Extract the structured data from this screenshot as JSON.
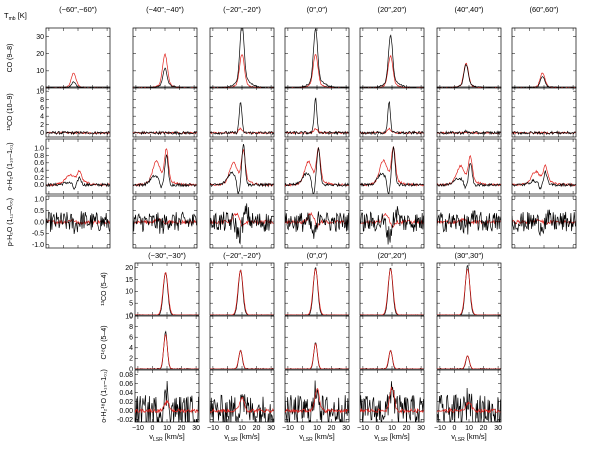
{
  "corner_label": "T_mb [K]",
  "colors": {
    "black": "#000000",
    "red": "#e0201b"
  },
  "top_block": {
    "columns": [
      "(−60″,−60″)",
      "(−40″,−40″)",
      "(−20″,−20″)",
      "(0″,0″)",
      "(20″,20″)",
      "(40″,40″)",
      "(60″,60″)"
    ],
    "rows": [
      {
        "ylabel": "CO (9–8)",
        "ylim": [
          0,
          35
        ],
        "yticks": [
          "0",
          "10",
          "20",
          "30"
        ]
      },
      {
        "ylabel": "¹³CO (10–9)",
        "ylim": [
          -1,
          11
        ],
        "yticks": [
          "0",
          "2",
          "4",
          "6",
          "8",
          "10"
        ]
      },
      {
        "ylabel": "o-H₂O (1₁₀–1₀₁)",
        "ylim": [
          -0.25,
          1.25
        ],
        "yticks": [
          "0.0",
          "0.2",
          "0.4",
          "0.6",
          "0.8",
          "1.0"
        ]
      },
      {
        "ylabel": "p-H₂O (1₁₁–0₀₀)",
        "ylim": [
          -1.15,
          1.15
        ],
        "yticks": [
          "-1.0",
          "-0.5",
          "0.0",
          "0.5",
          "1.0"
        ]
      }
    ]
  },
  "bottom_block": {
    "columns": [
      "(−30″,−30″)",
      "(−20″,−20″)",
      "(0″,0″)",
      "(20″,20″)",
      "(30″,30″)"
    ],
    "rows": [
      {
        "ylabel": "¹³CO (5–4)",
        "ylim": [
          0,
          22
        ],
        "yticks": [
          "0",
          "5",
          "10",
          "15",
          "20"
        ]
      },
      {
        "ylabel": "C¹⁸O (5–4)",
        "ylim": [
          0,
          10
        ],
        "yticks": [
          "0",
          "2",
          "4",
          "6",
          "8",
          "10"
        ]
      },
      {
        "ylabel": "o-H₂¹⁸O (1₁₀–1₀₁)",
        "ylim": [
          -0.025,
          0.09
        ],
        "yticks": [
          "-0.02",
          "0.00",
          "0.02",
          "0.04",
          "0.06",
          "0.08"
        ]
      }
    ],
    "xticks": [
      "−10",
      "0",
      "10",
      "20",
      "30"
    ],
    "xlabel": "v_LSR [km/s]"
  },
  "chart_data": {
    "type": "line",
    "x_range_kms": [
      -10,
      30
    ],
    "series": [
      {
        "color": "black"
      },
      {
        "color": "red"
      }
    ],
    "top_block_peaks": {
      "CO (9-8)": {
        "black": [
          3,
          10,
          33,
          30,
          27,
          12,
          6
        ],
        "red": [
          8,
          18,
          18,
          18,
          17,
          13,
          8
        ],
        "center_kms": [
          7,
          10,
          10,
          9,
          9,
          8,
          9
        ]
      },
      "13CO (10-9)": {
        "black": [
          0,
          0,
          7.5,
          8.5,
          7.5,
          0.3,
          0
        ],
        "red": [
          0,
          0,
          1,
          1,
          1,
          0.2,
          0
        ],
        "center_kms": [
          8,
          8,
          9,
          9,
          8,
          8,
          8
        ]
      },
      "o-H2O (1_10-1_01)": {
        "black_peak": [
          0.2,
          0.8,
          1.1,
          1.0,
          1.0,
          0.6,
          0.35
        ],
        "red_peak": [
          0.25,
          0.85,
          0.8,
          0.85,
          0.9,
          0.65,
          0.4
        ]
      },
      "p-H2O (1_11-0_00)": {
        "note": "noisy, absorption near 8 km/s at central positions"
      }
    },
    "bottom_block_peaks": {
      "13CO (5-4)": {
        "black": [
          18,
          19,
          20,
          20,
          21
        ],
        "red": [
          18,
          19,
          19.5,
          19.5,
          19.5
        ],
        "center_kms": 9
      },
      "C18O (5-4)": {
        "black": [
          7,
          3.5,
          5,
          3.5,
          2.5
        ],
        "red": [
          6.5,
          3.5,
          4.8,
          3.5,
          2.5
        ],
        "center_kms": 9
      },
      "o-H2_18O (1_10-1_01)": {
        "black": [
          0.04,
          0.04,
          0.06,
          0.06,
          0.03
        ],
        "red": [
          0.02,
          0.03,
          0.05,
          0.05,
          0.02
        ],
        "center_kms": 10
      }
    }
  }
}
